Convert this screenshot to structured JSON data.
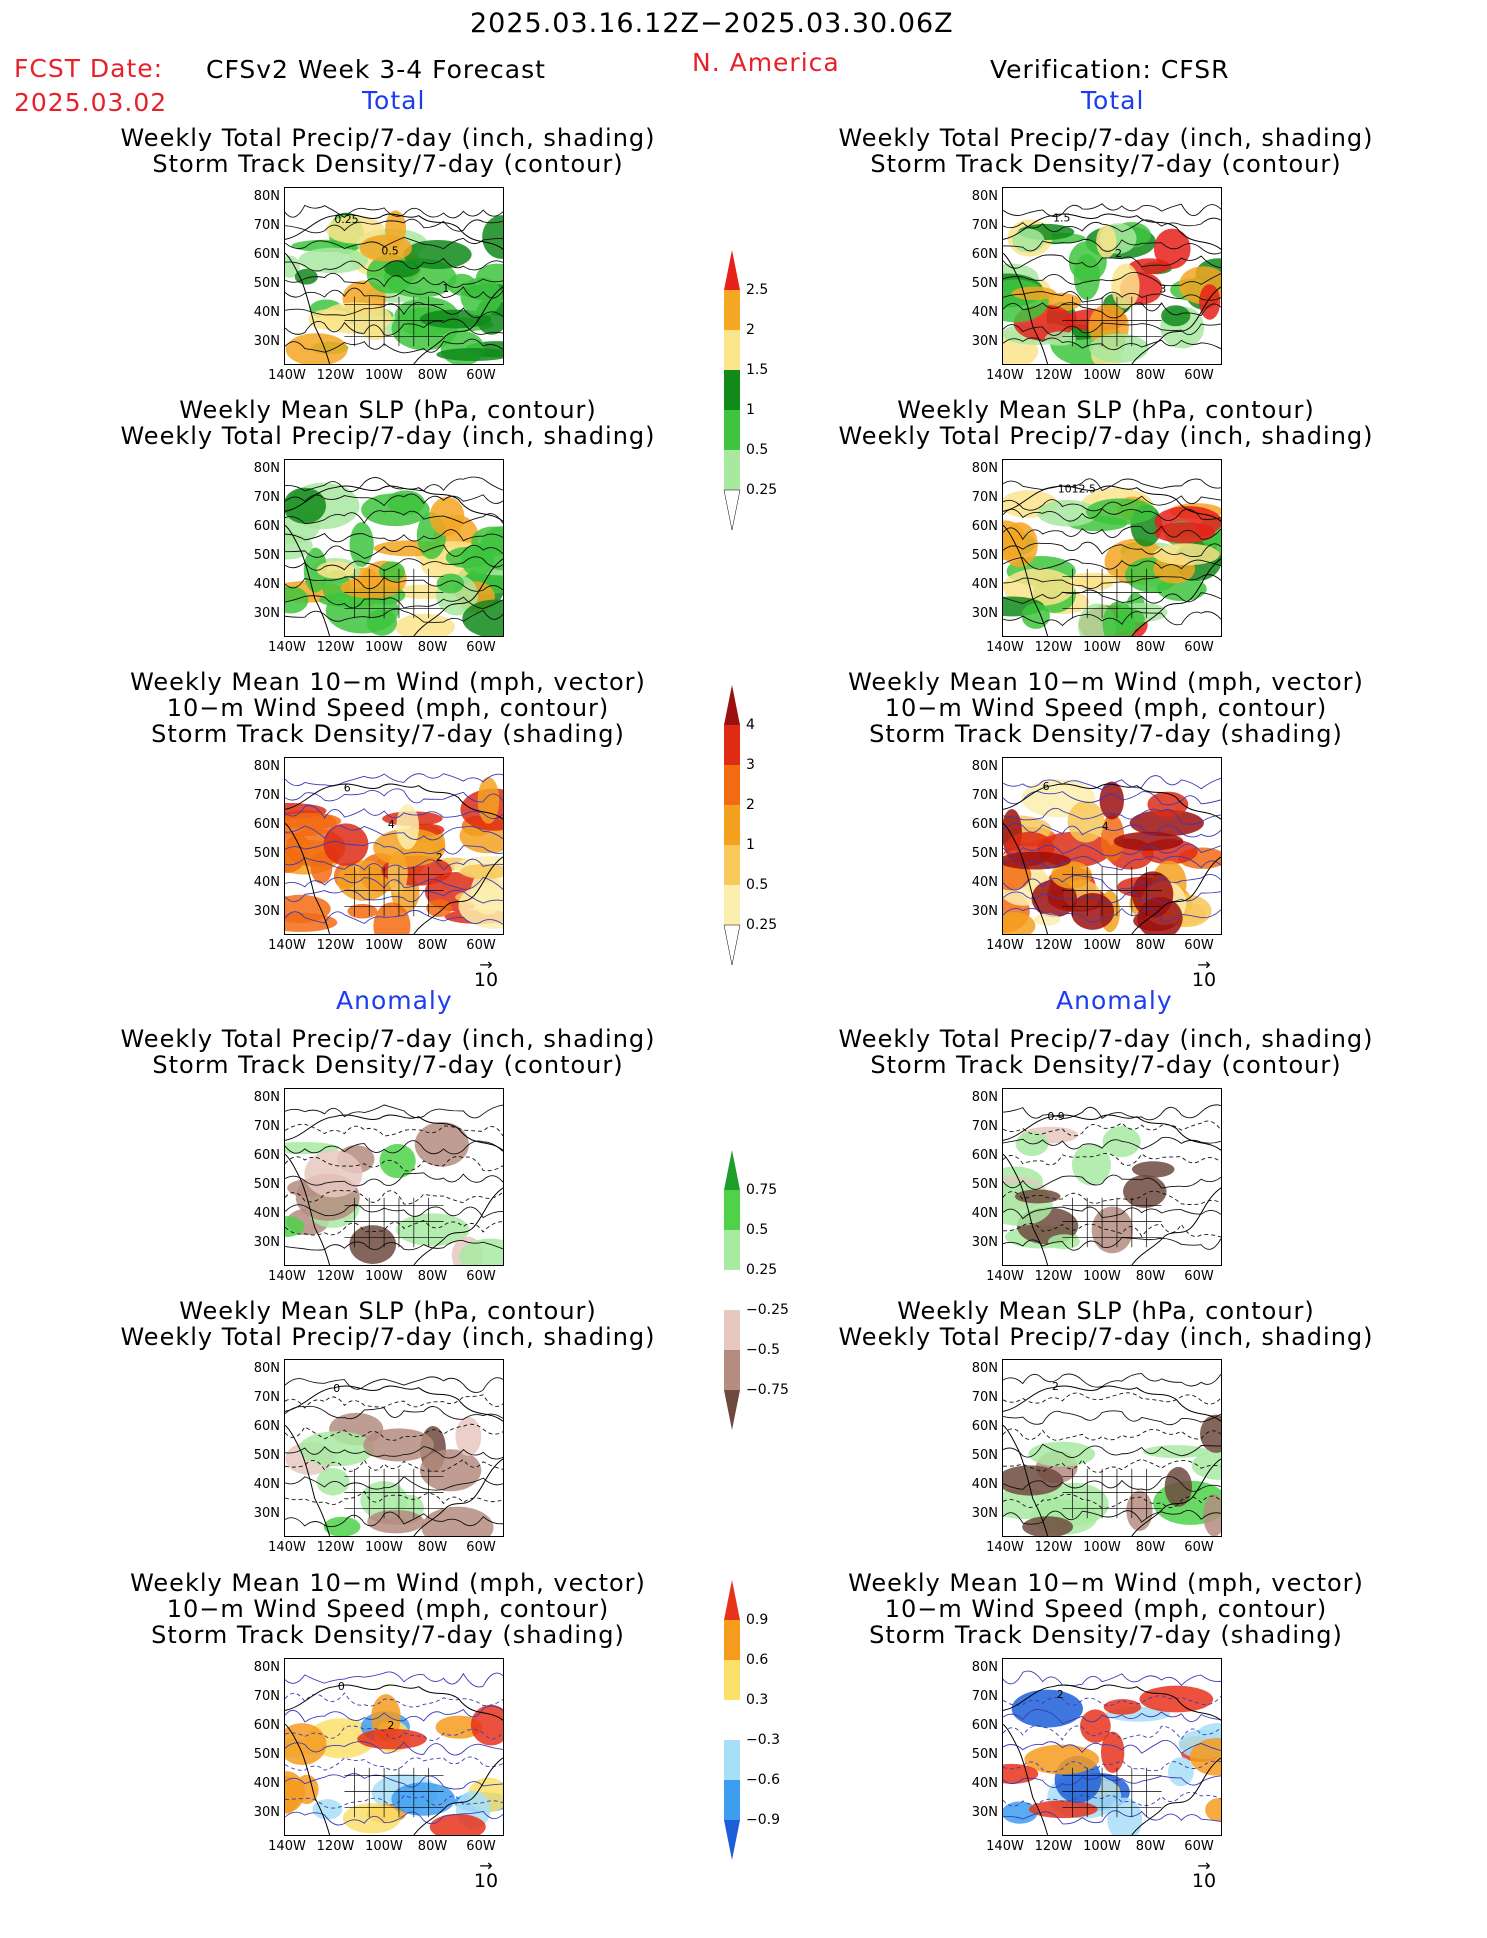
{
  "header": {
    "date_range": "2025.03.16.12Z−2025.03.30.06Z",
    "region": "N. America",
    "fcst_date_label": "FCST Date:",
    "fcst_date_value": "2025.03.02",
    "forecast_label": "CFSv2 Week 3-4 Forecast",
    "verification_label": "Verification: CFSR"
  },
  "sections": {
    "total": "Total",
    "anomaly": "Anomaly"
  },
  "panel_titles": {
    "precip_storm": [
      "Weekly Total Precip/7-day (inch, shading)",
      "Storm Track Density/7-day (contour)"
    ],
    "slp_precip": [
      "Weekly Mean SLP (hPa, contour)",
      "Weekly Total Precip/7-day (inch, shading)"
    ],
    "wind_storm": [
      "Weekly Mean 10−m Wind (mph, vector)",
      "10−m Wind Speed (mph, contour)",
      "Storm Track Density/7-day (shading)"
    ]
  },
  "axes": {
    "lat_labels": [
      "80N",
      "70N",
      "60N",
      "50N",
      "40N",
      "30N"
    ],
    "lon_labels": [
      "140W",
      "120W",
      "100W",
      "80W",
      "60W"
    ]
  },
  "vector_ref": "10",
  "colorbars": {
    "precip_total": {
      "labels": [
        "2.5",
        "2",
        "1.5",
        "1",
        "0.5",
        "0.25"
      ],
      "colors": [
        "#e8201a",
        "#f5a623",
        "#fbe48b",
        "#118a1a",
        "#3ec43e",
        "#a8e8a0"
      ]
    },
    "storm_total": {
      "labels": [
        "4",
        "3",
        "2",
        "1",
        "0.5",
        "0.25"
      ],
      "colors": [
        "#9c0f0f",
        "#dd2b14",
        "#f26b12",
        "#f5a120",
        "#f7c85a",
        "#fcefae"
      ]
    },
    "precip_anom": {
      "labels": [
        "0.75",
        "0.5",
        "0.25",
        "−0.25",
        "−0.5",
        "−0.75"
      ],
      "colors": [
        "#1e9e2a",
        "#4fd24a",
        "#a8eaa2",
        "#ffffff",
        "#e6c8bf",
        "#b48c80",
        "#6e4a3e"
      ]
    },
    "storm_anom": {
      "labels": [
        "0.9",
        "0.6",
        "0.3",
        "−0.3",
        "−0.6",
        "−0.9"
      ],
      "colors": [
        "#e8331a",
        "#f59b1e",
        "#fbe16a",
        "#ffffff",
        "#a8dff8",
        "#3d9ef0",
        "#1c5fd8"
      ]
    }
  },
  "map_annotations": {
    "r1_left_contour_labels": [
      "0.25",
      "0.5",
      "1"
    ],
    "r1_right_contour_labels": [
      "1.5",
      "2",
      "3"
    ],
    "r2_right_contour_label": "1012.5",
    "r3_left_contour_labels": [
      "6",
      "4",
      "2"
    ],
    "r3_right_contour_labels": [
      "6",
      "4"
    ],
    "r4_right_contour_label": "0.9",
    "r5_left_contour_label": "0",
    "r5_right_contour_label": "2",
    "r6_left_contour_labels": [
      "0",
      "2"
    ],
    "r6_right_contour_label": "2"
  }
}
